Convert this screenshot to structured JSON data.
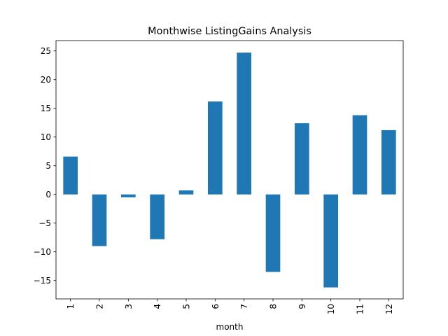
{
  "chart_data": {
    "type": "bar",
    "title": "Monthwise ListingGains Analysis",
    "xlabel": "month",
    "ylabel": "",
    "categories": [
      "1",
      "2",
      "3",
      "4",
      "5",
      "6",
      "7",
      "8",
      "9",
      "10",
      "11",
      "12"
    ],
    "values": [
      6.6,
      -9.0,
      -0.5,
      -7.8,
      0.7,
      16.2,
      24.7,
      -13.5,
      12.4,
      -16.2,
      13.8,
      11.2
    ],
    "ylim": [
      -18.2,
      26.8
    ],
    "yticks": [
      -15,
      -10,
      -5,
      0,
      5,
      10,
      15,
      20,
      25
    ],
    "ytick_labels": [
      "−15",
      "−10",
      "−5",
      "0",
      "5",
      "10",
      "15",
      "20",
      "25"
    ],
    "xtick_rotation": "vertical",
    "grid": false,
    "legend": "none",
    "colors": {
      "bar": "#1f77b4",
      "axes": "#000000",
      "background": "#ffffff"
    }
  }
}
